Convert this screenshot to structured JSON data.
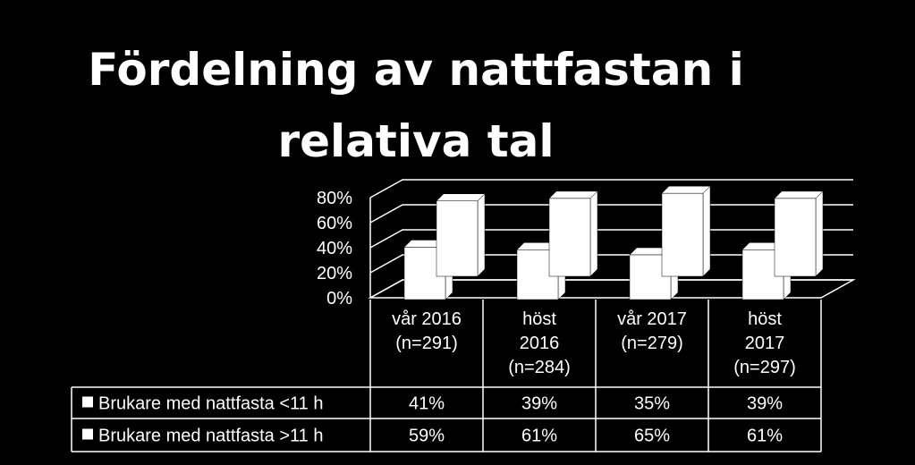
{
  "chart_data": {
    "type": "bar",
    "title": "Fördelning av nattfastan i relativa tal",
    "title_lines": [
      "Fördelning av nattfastan i",
      "relativa tal"
    ],
    "categories": [
      [
        "vår 2016",
        "(n=291)"
      ],
      [
        "höst",
        "2016",
        "(n=284)"
      ],
      [
        "vår 2017",
        "(n=279)"
      ],
      [
        "höst",
        "2017",
        "(n=297)"
      ]
    ],
    "series": [
      {
        "name": "Brukare med nattfasta <11 h",
        "values": [
          41,
          39,
          35,
          39
        ],
        "labels": [
          "41%",
          "39%",
          "35%",
          "39%"
        ],
        "color": "#ffffff"
      },
      {
        "name": "Brukare med nattfasta >11 h",
        "values": [
          59,
          61,
          65,
          61
        ],
        "labels": [
          "59%",
          "61%",
          "65%",
          "61%"
        ],
        "color": "#ffffff"
      }
    ],
    "ylim": [
      0,
      80
    ],
    "yticks": [
      "0%",
      "20%",
      "40%",
      "60%",
      "80%"
    ],
    "grid": true,
    "three_d": true,
    "data_table": true,
    "legend_in_table": true
  }
}
